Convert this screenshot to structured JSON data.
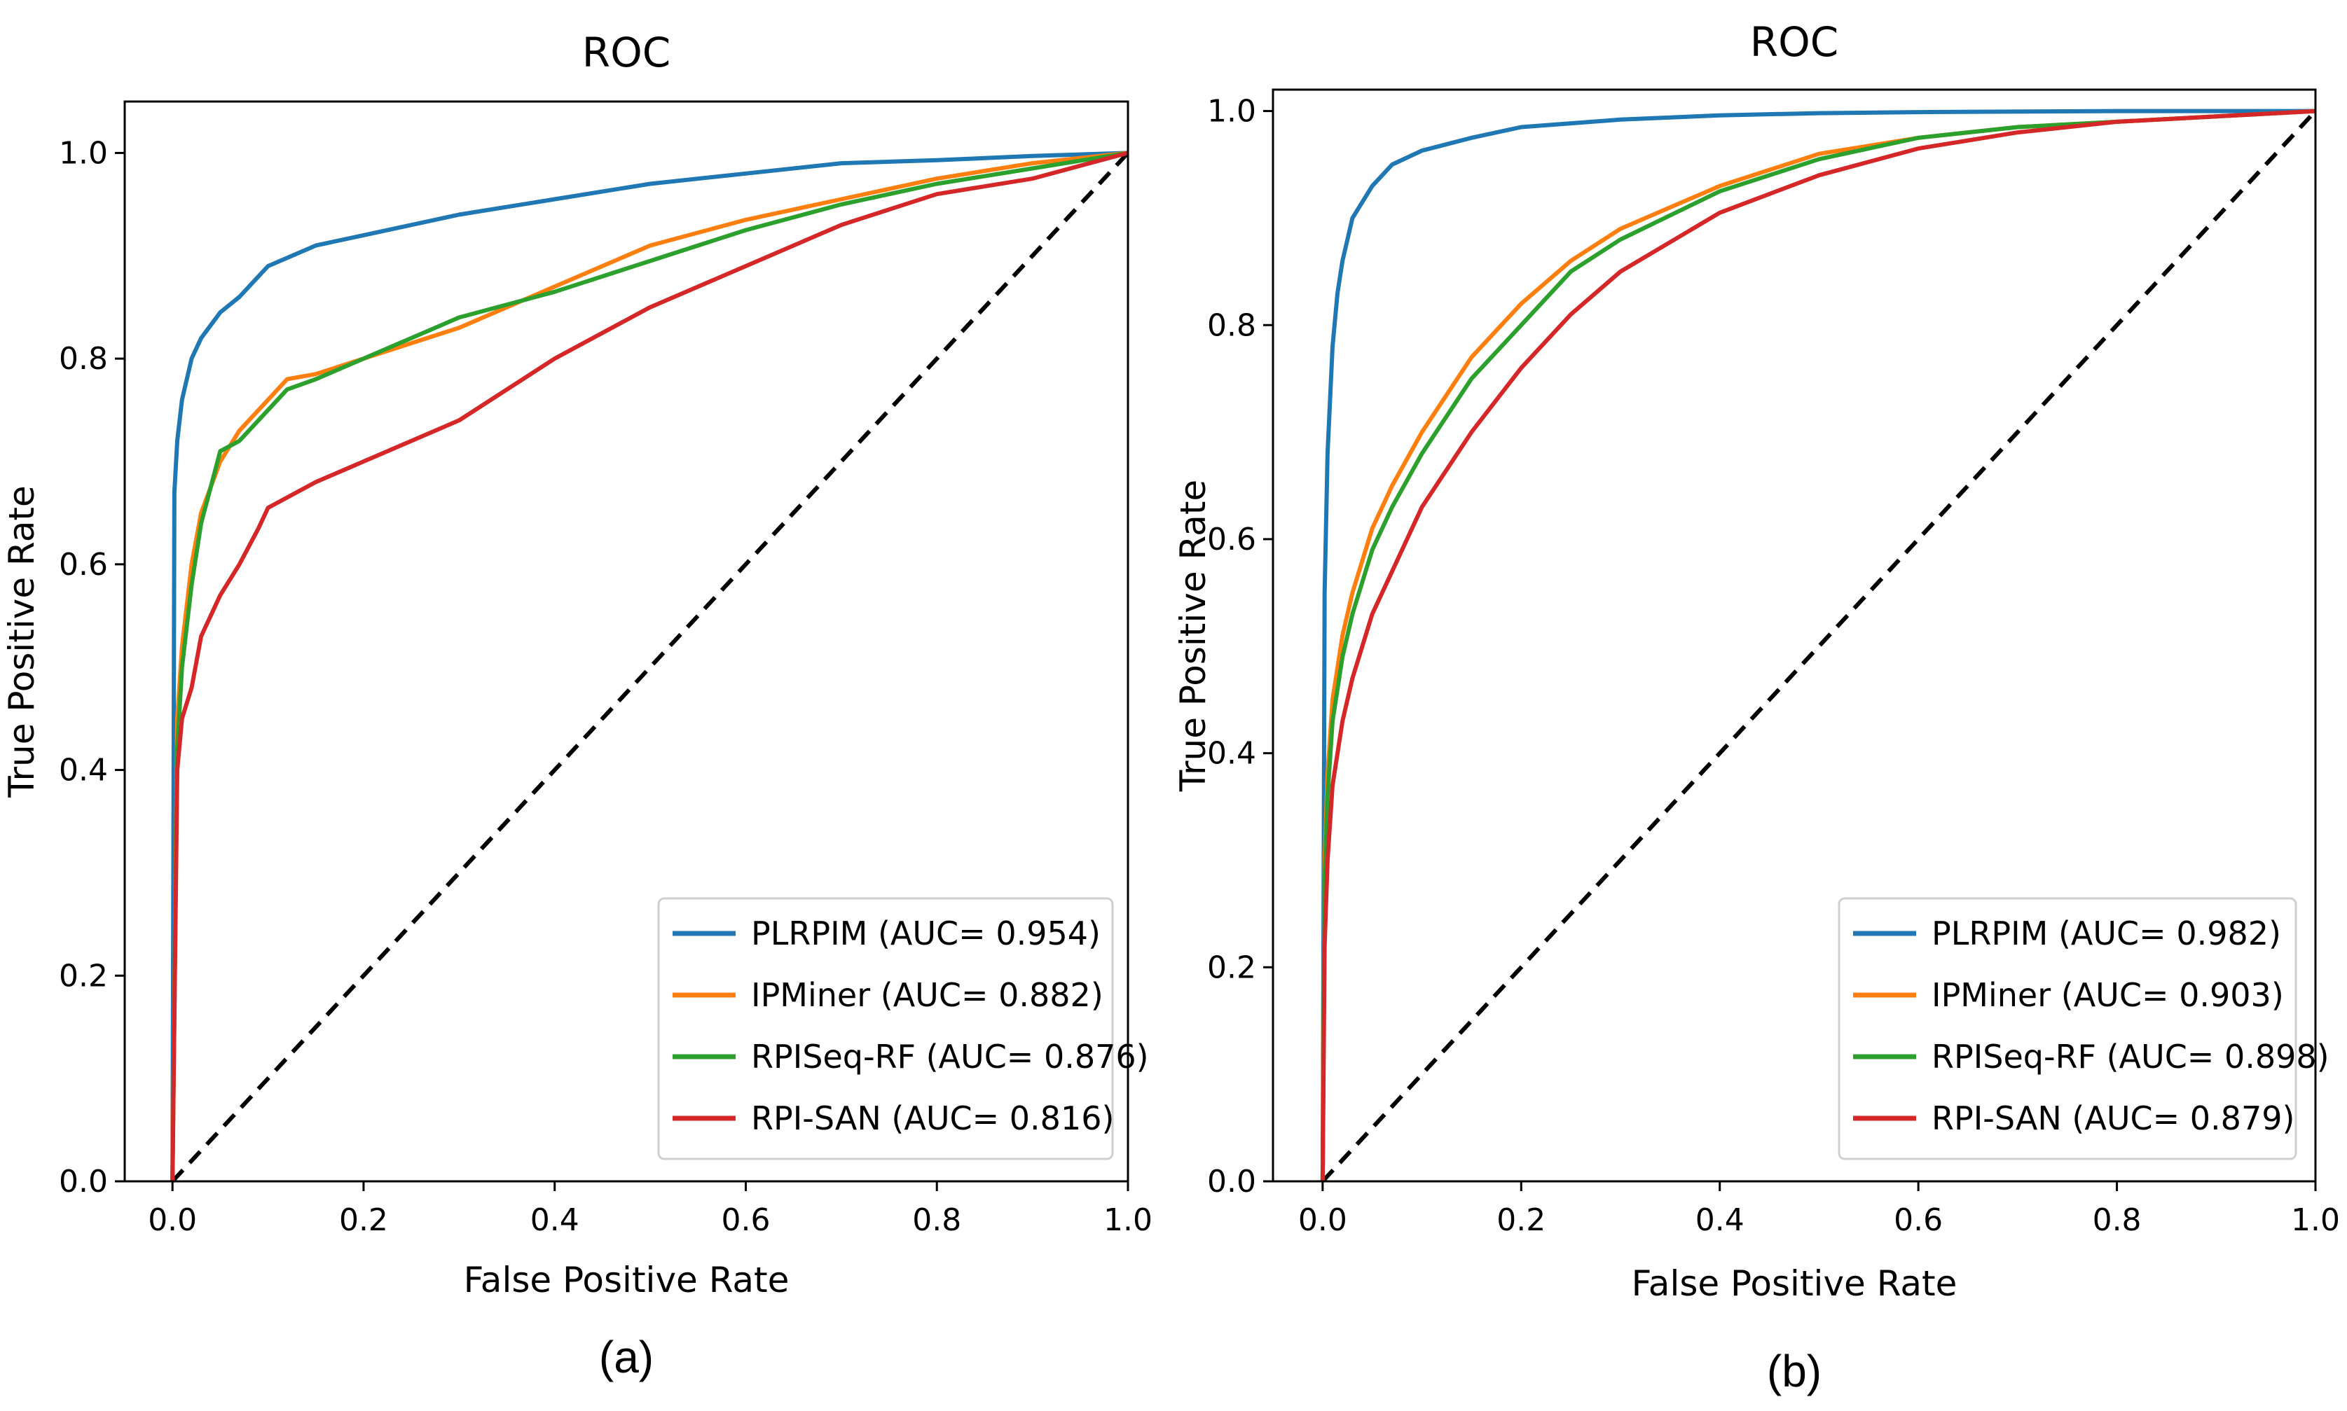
{
  "chart_data": [
    {
      "type": "line",
      "title": "ROC",
      "xlabel": "False Positive Rate",
      "ylabel": "True Positive Rate",
      "caption": "(a)",
      "xlim": [
        -0.05,
        1.0
      ],
      "ylim": [
        0.0,
        1.05
      ],
      "xticks": [
        "0.0",
        "0.2",
        "0.4",
        "0.6",
        "0.8",
        "1.0"
      ],
      "yticks": [
        "0.0",
        "0.2",
        "0.4",
        "0.6",
        "0.8",
        "1.0"
      ],
      "legend_position": "lower-right",
      "series": [
        {
          "name": "PLRPIM (AUC= 0.954)",
          "color": "#1f77b4",
          "x": [
            0,
            0.002,
            0.005,
            0.01,
            0.02,
            0.03,
            0.05,
            0.07,
            0.1,
            0.15,
            0.2,
            0.3,
            0.4,
            0.5,
            0.6,
            0.7,
            0.8,
            0.9,
            1.0
          ],
          "y": [
            0,
            0.67,
            0.72,
            0.76,
            0.8,
            0.82,
            0.845,
            0.86,
            0.89,
            0.91,
            0.92,
            0.94,
            0.955,
            0.97,
            0.98,
            0.99,
            0.993,
            0.997,
            1.0
          ]
        },
        {
          "name": "IPMiner (AUC= 0.882)",
          "color": "#ff7f0e",
          "x": [
            0,
            0.005,
            0.01,
            0.02,
            0.03,
            0.05,
            0.07,
            0.1,
            0.12,
            0.15,
            0.2,
            0.3,
            0.4,
            0.5,
            0.6,
            0.7,
            0.8,
            0.9,
            1.0
          ],
          "y": [
            0,
            0.45,
            0.52,
            0.6,
            0.65,
            0.7,
            0.73,
            0.76,
            0.78,
            0.785,
            0.8,
            0.83,
            0.87,
            0.91,
            0.935,
            0.955,
            0.975,
            0.99,
            1.0
          ]
        },
        {
          "name": "RPISeq-RF (AUC= 0.876)",
          "color": "#2ca02c",
          "x": [
            0,
            0.005,
            0.01,
            0.02,
            0.03,
            0.05,
            0.07,
            0.1,
            0.12,
            0.15,
            0.2,
            0.3,
            0.4,
            0.5,
            0.6,
            0.7,
            0.8,
            0.9,
            1.0
          ],
          "y": [
            0,
            0.42,
            0.5,
            0.58,
            0.64,
            0.71,
            0.72,
            0.75,
            0.77,
            0.78,
            0.8,
            0.84,
            0.865,
            0.895,
            0.925,
            0.95,
            0.97,
            0.985,
            1.0
          ]
        },
        {
          "name": "RPI-SAN (AUC= 0.816)",
          "color": "#d62728",
          "x": [
            0,
            0.005,
            0.01,
            0.02,
            0.03,
            0.05,
            0.07,
            0.09,
            0.1,
            0.15,
            0.2,
            0.3,
            0.4,
            0.5,
            0.6,
            0.7,
            0.8,
            0.9,
            1.0
          ],
          "y": [
            0,
            0.4,
            0.45,
            0.48,
            0.53,
            0.57,
            0.6,
            0.635,
            0.655,
            0.68,
            0.7,
            0.74,
            0.8,
            0.85,
            0.89,
            0.93,
            0.96,
            0.975,
            1.0
          ]
        }
      ]
    },
    {
      "type": "line",
      "title": "ROC",
      "xlabel": "False Positive Rate",
      "ylabel": "True Positive Rate",
      "caption": "(b)",
      "xlim": [
        -0.05,
        1.0
      ],
      "ylim": [
        0.0,
        1.02
      ],
      "xticks": [
        "0.0",
        "0.2",
        "0.4",
        "0.6",
        "0.8",
        "1.0"
      ],
      "yticks": [
        "0.0",
        "0.2",
        "0.4",
        "0.6",
        "0.8",
        "1.0"
      ],
      "legend_position": "lower-right",
      "series": [
        {
          "name": "PLRPIM (AUC= 0.982)",
          "color": "#1f77b4",
          "x": [
            0,
            0.002,
            0.005,
            0.01,
            0.015,
            0.02,
            0.03,
            0.05,
            0.07,
            0.1,
            0.15,
            0.2,
            0.3,
            0.4,
            0.5,
            0.6,
            0.8,
            1.0
          ],
          "y": [
            0,
            0.55,
            0.68,
            0.78,
            0.83,
            0.86,
            0.9,
            0.93,
            0.95,
            0.963,
            0.975,
            0.985,
            0.992,
            0.996,
            0.998,
            0.999,
            1.0,
            1.0
          ]
        },
        {
          "name": "IPMiner (AUC= 0.903)",
          "color": "#ff7f0e",
          "x": [
            0,
            0.002,
            0.005,
            0.01,
            0.02,
            0.03,
            0.05,
            0.07,
            0.1,
            0.15,
            0.2,
            0.25,
            0.3,
            0.4,
            0.5,
            0.6,
            0.7,
            0.8,
            0.9,
            1.0
          ],
          "y": [
            0,
            0.3,
            0.38,
            0.45,
            0.51,
            0.55,
            0.61,
            0.65,
            0.7,
            0.77,
            0.82,
            0.86,
            0.89,
            0.93,
            0.96,
            0.975,
            0.985,
            0.99,
            0.995,
            1.0
          ]
        },
        {
          "name": "RPISeq-RF (AUC= 0.898)",
          "color": "#2ca02c",
          "x": [
            0,
            0.002,
            0.005,
            0.01,
            0.02,
            0.03,
            0.05,
            0.07,
            0.1,
            0.15,
            0.2,
            0.25,
            0.3,
            0.4,
            0.5,
            0.6,
            0.7,
            0.8,
            0.9,
            1.0
          ],
          "y": [
            0,
            0.28,
            0.36,
            0.43,
            0.49,
            0.53,
            0.59,
            0.63,
            0.68,
            0.75,
            0.8,
            0.85,
            0.88,
            0.925,
            0.955,
            0.975,
            0.985,
            0.99,
            0.995,
            1.0
          ]
        },
        {
          "name": "RPI-SAN (AUC= 0.879)",
          "color": "#d62728",
          "x": [
            0,
            0.002,
            0.005,
            0.01,
            0.02,
            0.03,
            0.05,
            0.07,
            0.1,
            0.15,
            0.2,
            0.25,
            0.3,
            0.4,
            0.5,
            0.6,
            0.7,
            0.8,
            0.9,
            1.0
          ],
          "y": [
            0,
            0.22,
            0.3,
            0.37,
            0.43,
            0.47,
            0.53,
            0.57,
            0.63,
            0.7,
            0.76,
            0.81,
            0.85,
            0.905,
            0.94,
            0.965,
            0.98,
            0.99,
            0.995,
            1.0
          ]
        }
      ]
    }
  ],
  "diagonal_style": "black dashed"
}
